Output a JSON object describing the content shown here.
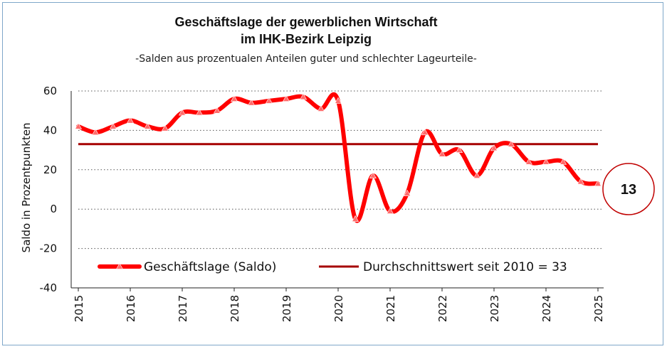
{
  "chart_data": {
    "type": "line",
    "title_line1": "Geschäftslage der gewerblichen Wirtschaft",
    "title_line2": "im IHK-Bezirk Leipzig",
    "subtitle": "-Salden aus prozentualen Anteilen guter und schlechter Lageurteile-",
    "ylabel": "Saldo in Prozentpunkten",
    "xlabel": "",
    "ylim": [
      -40,
      60
    ],
    "yticks": [
      60,
      40,
      20,
      0,
      -20,
      -40
    ],
    "xlim": [
      2015,
      2025
    ],
    "xticks": [
      "2015",
      "2016",
      "2017",
      "2018",
      "2019",
      "2020",
      "2021",
      "2022",
      "2023",
      "2024",
      "2025"
    ],
    "grid": "horizontal-dotted",
    "legend_position": "bottom-inside",
    "series": [
      {
        "name": "Geschäftslage (Saldo)",
        "color": "#ff0000",
        "x": [
          2015.0,
          2015.33,
          2015.67,
          2016.0,
          2016.33,
          2016.67,
          2017.0,
          2017.33,
          2017.67,
          2018.0,
          2018.33,
          2018.67,
          2019.0,
          2019.33,
          2019.67,
          2020.0,
          2020.33,
          2020.67,
          2021.0,
          2021.33,
          2021.67,
          2022.0,
          2022.33,
          2022.67,
          2023.0,
          2023.33,
          2023.67,
          2024.0,
          2024.33,
          2024.67,
          2025.0
        ],
        "values": [
          42,
          39,
          42,
          45,
          42,
          41,
          49,
          49,
          50,
          56,
          54,
          55,
          56,
          57,
          51,
          55,
          -5,
          17,
          -1,
          8,
          39,
          28,
          30,
          17,
          31,
          33,
          24,
          24,
          24,
          14,
          13
        ]
      },
      {
        "name": "Durchschnittswert seit 2010 = 33",
        "color": "#a50000",
        "constant": 33
      }
    ],
    "callout": {
      "label": "13",
      "value": 13
    }
  }
}
